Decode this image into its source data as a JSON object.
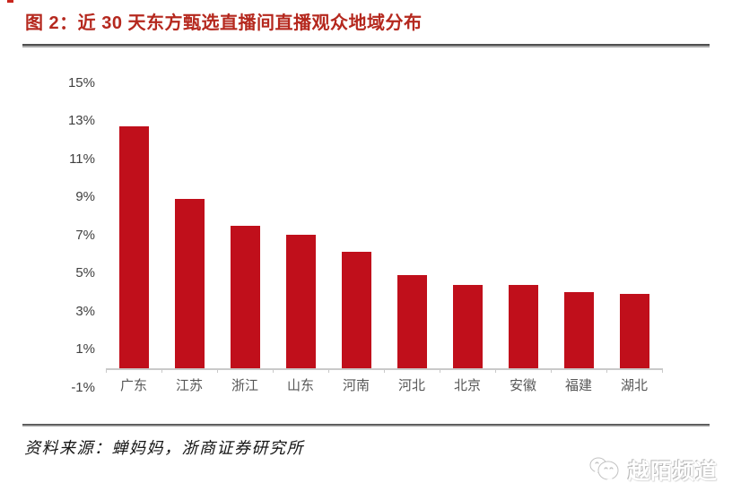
{
  "header": {
    "title": "图 2：近 30 天东方甄选直播间直播观众地域分布"
  },
  "chart_data": {
    "type": "bar",
    "title": "近 30 天东方甄选直播间直播观众地域分布",
    "categories": [
      "广东",
      "江苏",
      "浙江",
      "山东",
      "河南",
      "河北",
      "北京",
      "安徽",
      "福建",
      "湖北"
    ],
    "values": [
      12.7,
      8.9,
      7.5,
      7.0,
      6.1,
      4.9,
      4.4,
      4.4,
      4.0,
      3.9
    ],
    "unit": "%",
    "xlabel": "",
    "ylabel": "",
    "ylim": [
      -1,
      15
    ],
    "yticks": [
      15,
      13,
      11,
      9,
      7,
      5,
      3,
      1,
      -1
    ],
    "ytick_labels": [
      "15%",
      "13%",
      "11%",
      "9%",
      "7%",
      "5%",
      "3%",
      "1%",
      "-1%"
    ],
    "grid": false,
    "legend_position": "none"
  },
  "footer": {
    "source": "资料来源：蝉妈妈，浙商证券研究所",
    "watermark": "越陌频道"
  },
  "colors": {
    "title": "#B5281E",
    "bar": "#C00F1B",
    "axis_label": "#404040",
    "x_label": "#575757",
    "axis_line": "#C9C9C9"
  }
}
